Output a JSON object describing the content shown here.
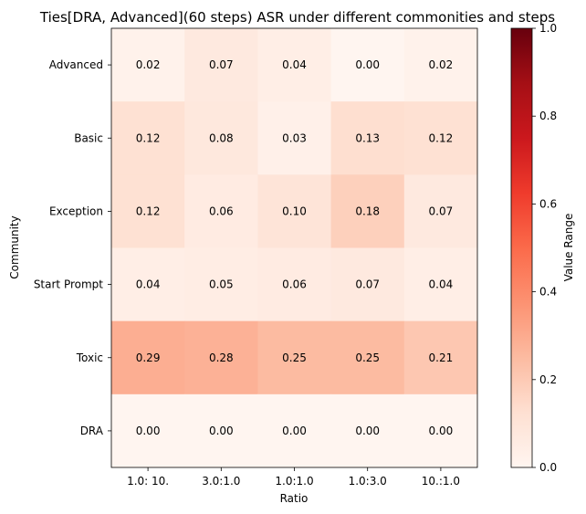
{
  "chart_data": {
    "type": "heatmap",
    "title": "Ties[DRA, Advanced](60 steps) ASR under different commonities and steps",
    "xlabel": "Ratio",
    "ylabel": "Community",
    "x_categories": [
      "1.0: 10.",
      "3.0:1.0",
      "1.0:1.0",
      "1.0:3.0",
      "10.:1.0"
    ],
    "y_categories": [
      "Advanced",
      "Basic",
      "Exception",
      "Start Prompt",
      "Toxic",
      "DRA"
    ],
    "values": [
      [
        0.02,
        0.07,
        0.04,
        0.0,
        0.02
      ],
      [
        0.12,
        0.08,
        0.03,
        0.13,
        0.12
      ],
      [
        0.12,
        0.06,
        0.1,
        0.18,
        0.07
      ],
      [
        0.04,
        0.05,
        0.06,
        0.07,
        0.04
      ],
      [
        0.29,
        0.28,
        0.25,
        0.25,
        0.21
      ],
      [
        0.0,
        0.0,
        0.0,
        0.0,
        0.0
      ]
    ],
    "cell_labels": [
      [
        "0.02",
        "0.07",
        "0.04",
        "0.00",
        "0.02"
      ],
      [
        "0.12",
        "0.08",
        "0.03",
        "0.13",
        "0.12"
      ],
      [
        "0.12",
        "0.06",
        "0.10",
        "0.18",
        "0.07"
      ],
      [
        "0.04",
        "0.05",
        "0.06",
        "0.07",
        "0.04"
      ],
      [
        "0.29",
        "0.28",
        "0.25",
        "0.25",
        "0.21"
      ],
      [
        "0.00",
        "0.00",
        "0.00",
        "0.00",
        "0.00"
      ]
    ],
    "colorbar": {
      "label": "Value Range",
      "range": [
        0.0,
        1.0
      ],
      "ticks": [
        "0.0",
        "0.2",
        "0.4",
        "0.6",
        "0.8",
        "1.0"
      ],
      "colormap": "Reds"
    }
  }
}
